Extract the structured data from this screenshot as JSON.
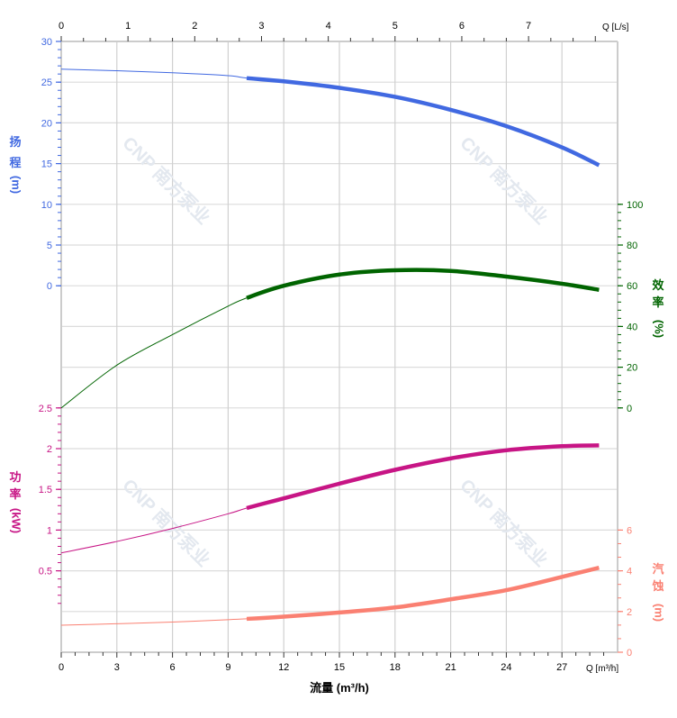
{
  "chart_data": {
    "type": "line",
    "watermark": "CNP 南方泵业",
    "x_axis": {
      "label": "流量 (m³/h)",
      "unit_label": "Q [m³/h]",
      "range": [
        0,
        30
      ],
      "ticks": [
        0,
        3,
        6,
        9,
        12,
        15,
        18,
        21,
        24,
        27
      ]
    },
    "top_axis": {
      "unit_label": "Q [L/s]",
      "range": [
        0,
        8.333
      ],
      "ticks": [
        0,
        1,
        2,
        3,
        4,
        5,
        6,
        7
      ]
    },
    "grid": true,
    "operating_range": [
      10,
      29
    ],
    "series": [
      {
        "name": "扬程",
        "axis_label": [
          "扬",
          "程",
          "(m)"
        ],
        "color": "#4169e1",
        "side": "left",
        "range": [
          0,
          30
        ],
        "ticks": [
          0,
          5,
          10,
          15,
          20,
          25,
          30
        ],
        "x": [
          0,
          3,
          6,
          9,
          10,
          12,
          15,
          18,
          21,
          24,
          27,
          29
        ],
        "y": [
          26.6,
          26.4,
          26.15,
          25.8,
          25.5,
          25.1,
          24.3,
          23.2,
          21.6,
          19.6,
          17.0,
          14.8
        ]
      },
      {
        "name": "效率",
        "axis_label": [
          "效",
          "率",
          "(%)"
        ],
        "color": "#006400",
        "side": "right",
        "range": [
          0,
          100
        ],
        "ticks": [
          0,
          20,
          40,
          60,
          80,
          100
        ],
        "x": [
          0,
          3,
          6,
          9,
          10,
          12,
          15,
          18,
          21,
          24,
          27,
          29
        ],
        "y": [
          0,
          21,
          36,
          50,
          54,
          60,
          65.5,
          67.6,
          67.3,
          64.5,
          61,
          58
        ]
      },
      {
        "name": "功率",
        "axis_label": [
          "功",
          "率",
          "(kW)"
        ],
        "color": "#c71585",
        "side": "left",
        "range": [
          0,
          2.5
        ],
        "ticks": [
          0.5,
          1,
          1.5,
          2,
          2.5
        ],
        "x": [
          0,
          3,
          6,
          9,
          10,
          12,
          15,
          18,
          21,
          24,
          27,
          29
        ],
        "y": [
          0.72,
          0.86,
          1.02,
          1.2,
          1.27,
          1.39,
          1.57,
          1.74,
          1.88,
          1.98,
          2.03,
          2.04
        ]
      },
      {
        "name": "汽蚀",
        "axis_label": [
          "汽",
          "蚀",
          "(m)"
        ],
        "color": "#fa8072",
        "side": "right",
        "range": [
          0,
          6
        ],
        "ticks": [
          0,
          2,
          4,
          6
        ],
        "x": [
          0,
          3,
          6,
          9,
          10,
          12,
          15,
          18,
          21,
          24,
          27,
          29
        ],
        "y": [
          1.33,
          1.4,
          1.48,
          1.6,
          1.64,
          1.75,
          1.95,
          2.2,
          2.6,
          3.05,
          3.7,
          4.15
        ]
      }
    ]
  }
}
